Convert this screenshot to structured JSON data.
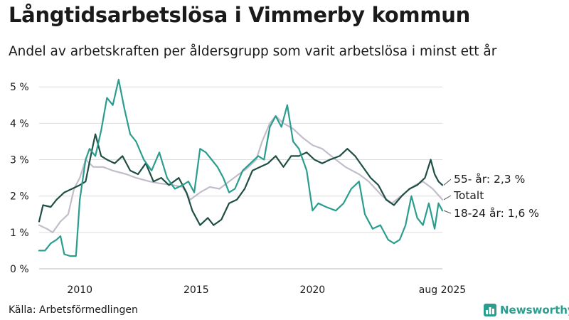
{
  "title": "Långtidsarbetslösa i Vimmerby kommun",
  "subtitle": "Andel av arbetskraften per åldersgrupp som varit arbetslösa i minst ett år",
  "source": "Källa: Arbetsförmedlingen",
  "brand": "Newsworthy",
  "colors": {
    "senior": "#1f4e45",
    "total": "#c2bdc9",
    "youth": "#2a9d8f",
    "grid": "#dcdcdc",
    "text": "#1a1a1a"
  },
  "chart_data": {
    "type": "line",
    "title": "Långtidsarbetslösa i Vimmerby kommun",
    "subtitle": "Andel av arbetskraften per åldersgrupp som varit arbetslösa i minst ett år",
    "xlim": [
      "2008-04",
      "2025-08"
    ],
    "ylim": [
      0,
      5.2
    ],
    "y_ticks": [
      0,
      1,
      2,
      3,
      4,
      5
    ],
    "y_tick_labels": [
      "0 %",
      "1 %",
      "2 %",
      "3 %",
      "4 %",
      "5 %"
    ],
    "x_ticks": [
      "2010-01",
      "2015-01",
      "2020-01",
      "2025-08"
    ],
    "x_tick_labels": [
      "2010",
      "2015",
      "2020",
      "aug 2025"
    ],
    "grid": true,
    "series": [
      {
        "name": "Totalt",
        "label": "Totalt",
        "color": "#c2bdc9",
        "points": [
          [
            "2008-04",
            1.2
          ],
          [
            "2008-08",
            1.1
          ],
          [
            "2008-11",
            1.0
          ],
          [
            "2009-03",
            1.3
          ],
          [
            "2009-07",
            1.5
          ],
          [
            "2009-10",
            2.2
          ],
          [
            "2010-01",
            2.5
          ],
          [
            "2010-04",
            3.0
          ],
          [
            "2010-08",
            2.8
          ],
          [
            "2011-01",
            2.8
          ],
          [
            "2011-06",
            2.7
          ],
          [
            "2012-01",
            2.6
          ],
          [
            "2012-06",
            2.5
          ],
          [
            "2013-01",
            2.4
          ],
          [
            "2013-06",
            2.35
          ],
          [
            "2014-01",
            2.3
          ],
          [
            "2014-06",
            2.25
          ],
          [
            "2014-10",
            1.9
          ],
          [
            "2015-03",
            2.1
          ],
          [
            "2015-08",
            2.25
          ],
          [
            "2016-01",
            2.2
          ],
          [
            "2016-06",
            2.4
          ],
          [
            "2016-11",
            2.6
          ],
          [
            "2017-03",
            2.75
          ],
          [
            "2017-08",
            3.0
          ],
          [
            "2017-11",
            3.5
          ],
          [
            "2018-03",
            4.0
          ],
          [
            "2018-06",
            4.2
          ],
          [
            "2018-10",
            4.0
          ],
          [
            "2019-03",
            3.85
          ],
          [
            "2019-08",
            3.6
          ],
          [
            "2020-01",
            3.4
          ],
          [
            "2020-06",
            3.3
          ],
          [
            "2021-01",
            3.0
          ],
          [
            "2021-06",
            2.8
          ],
          [
            "2022-01",
            2.6
          ],
          [
            "2022-06",
            2.4
          ],
          [
            "2023-01",
            2.0
          ],
          [
            "2023-06",
            1.8
          ],
          [
            "2024-01",
            2.1
          ],
          [
            "2024-06",
            2.3
          ],
          [
            "2024-10",
            2.4
          ],
          [
            "2025-03",
            2.2
          ],
          [
            "2025-08",
            1.9
          ]
        ]
      },
      {
        "name": "55- år",
        "label": "55- år: 2,3 %",
        "color": "#1f4e45",
        "points": [
          [
            "2008-04",
            1.3
          ],
          [
            "2008-06",
            1.75
          ],
          [
            "2008-10",
            1.7
          ],
          [
            "2009-01",
            1.9
          ],
          [
            "2009-05",
            2.1
          ],
          [
            "2009-09",
            2.2
          ],
          [
            "2010-01",
            2.3
          ],
          [
            "2010-04",
            2.4
          ],
          [
            "2010-07",
            3.2
          ],
          [
            "2010-09",
            3.7
          ],
          [
            "2010-12",
            3.1
          ],
          [
            "2011-03",
            3.0
          ],
          [
            "2011-07",
            2.9
          ],
          [
            "2011-11",
            3.1
          ],
          [
            "2012-03",
            2.7
          ],
          [
            "2012-07",
            2.6
          ],
          [
            "2012-11",
            2.9
          ],
          [
            "2013-03",
            2.4
          ],
          [
            "2013-07",
            2.5
          ],
          [
            "2013-11",
            2.3
          ],
          [
            "2014-04",
            2.5
          ],
          [
            "2014-08",
            2.1
          ],
          [
            "2014-11",
            1.6
          ],
          [
            "2015-03",
            1.2
          ],
          [
            "2015-07",
            1.4
          ],
          [
            "2015-10",
            1.2
          ],
          [
            "2016-02",
            1.35
          ],
          [
            "2016-06",
            1.8
          ],
          [
            "2016-10",
            1.9
          ],
          [
            "2017-02",
            2.2
          ],
          [
            "2017-06",
            2.7
          ],
          [
            "2017-10",
            2.8
          ],
          [
            "2018-02",
            2.9
          ],
          [
            "2018-06",
            3.1
          ],
          [
            "2018-10",
            2.8
          ],
          [
            "2019-02",
            3.1
          ],
          [
            "2019-06",
            3.1
          ],
          [
            "2019-10",
            3.2
          ],
          [
            "2020-02",
            3.0
          ],
          [
            "2020-06",
            2.9
          ],
          [
            "2020-10",
            3.0
          ],
          [
            "2021-03",
            3.1
          ],
          [
            "2021-07",
            3.3
          ],
          [
            "2021-11",
            3.1
          ],
          [
            "2022-03",
            2.8
          ],
          [
            "2022-07",
            2.5
          ],
          [
            "2022-11",
            2.3
          ],
          [
            "2023-03",
            1.9
          ],
          [
            "2023-07",
            1.75
          ],
          [
            "2023-11",
            2.0
          ],
          [
            "2024-03",
            2.2
          ],
          [
            "2024-07",
            2.3
          ],
          [
            "2024-11",
            2.5
          ],
          [
            "2025-02",
            3.0
          ],
          [
            "2025-04",
            2.6
          ],
          [
            "2025-06",
            2.4
          ],
          [
            "2025-08",
            2.3
          ]
        ]
      },
      {
        "name": "18-24 år",
        "label": "18-24 år: 1,6 %",
        "color": "#2a9d8f",
        "points": [
          [
            "2008-04",
            0.5
          ],
          [
            "2008-07",
            0.5
          ],
          [
            "2008-10",
            0.7
          ],
          [
            "2009-01",
            0.8
          ],
          [
            "2009-03",
            0.9
          ],
          [
            "2009-05",
            0.4
          ],
          [
            "2009-08",
            0.35
          ],
          [
            "2009-11",
            0.35
          ],
          [
            "2010-01",
            1.9
          ],
          [
            "2010-04",
            3.0
          ],
          [
            "2010-06",
            3.3
          ],
          [
            "2010-09",
            3.1
          ],
          [
            "2010-12",
            3.8
          ],
          [
            "2011-03",
            4.7
          ],
          [
            "2011-06",
            4.5
          ],
          [
            "2011-09",
            5.2
          ],
          [
            "2011-12",
            4.4
          ],
          [
            "2012-03",
            3.7
          ],
          [
            "2012-06",
            3.5
          ],
          [
            "2012-10",
            3.0
          ],
          [
            "2013-02",
            2.7
          ],
          [
            "2013-06",
            3.2
          ],
          [
            "2013-10",
            2.5
          ],
          [
            "2014-02",
            2.2
          ],
          [
            "2014-06",
            2.3
          ],
          [
            "2014-09",
            2.4
          ],
          [
            "2014-12",
            2.1
          ],
          [
            "2015-03",
            3.3
          ],
          [
            "2015-06",
            3.2
          ],
          [
            "2015-09",
            3.0
          ],
          [
            "2015-12",
            2.8
          ],
          [
            "2016-03",
            2.5
          ],
          [
            "2016-06",
            2.1
          ],
          [
            "2016-09",
            2.2
          ],
          [
            "2017-01",
            2.7
          ],
          [
            "2017-05",
            2.9
          ],
          [
            "2017-09",
            3.1
          ],
          [
            "2017-12",
            3.0
          ],
          [
            "2018-03",
            3.9
          ],
          [
            "2018-06",
            4.2
          ],
          [
            "2018-09",
            3.9
          ],
          [
            "2018-12",
            4.5
          ],
          [
            "2019-03",
            3.5
          ],
          [
            "2019-06",
            3.3
          ],
          [
            "2019-10",
            2.7
          ],
          [
            "2020-01",
            1.6
          ],
          [
            "2020-04",
            1.8
          ],
          [
            "2020-08",
            1.7
          ],
          [
            "2021-01",
            1.6
          ],
          [
            "2021-05",
            1.8
          ],
          [
            "2021-09",
            2.2
          ],
          [
            "2022-01",
            2.4
          ],
          [
            "2022-04",
            1.5
          ],
          [
            "2022-08",
            1.1
          ],
          [
            "2022-12",
            1.2
          ],
          [
            "2023-04",
            0.8
          ],
          [
            "2023-07",
            0.7
          ],
          [
            "2023-10",
            0.8
          ],
          [
            "2024-01",
            1.2
          ],
          [
            "2024-04",
            2.0
          ],
          [
            "2024-07",
            1.4
          ],
          [
            "2024-10",
            1.2
          ],
          [
            "2025-01",
            1.8
          ],
          [
            "2025-04",
            1.1
          ],
          [
            "2025-06",
            1.8
          ],
          [
            "2025-08",
            1.6
          ]
        ]
      }
    ]
  }
}
